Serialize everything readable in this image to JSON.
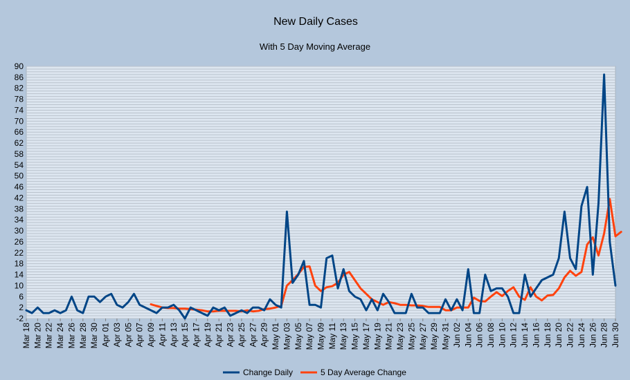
{
  "chart_data": {
    "type": "line",
    "title": "New Daily Cases",
    "subtitle": "With 5 Day Moving Average",
    "xlabel": "",
    "ylabel": "",
    "ylim": [
      -2,
      90
    ],
    "yticks": [
      -2,
      2,
      6,
      10,
      14,
      18,
      22,
      26,
      30,
      34,
      38,
      42,
      46,
      50,
      54,
      58,
      62,
      66,
      70,
      74,
      78,
      82,
      86,
      90
    ],
    "grid": true,
    "legend": "bottom",
    "colors": {
      "background": "#b4c7dc",
      "plot_area": "#dde6f0",
      "gridline": "#b9c2cc"
    },
    "x_labels": [
      "Mar 18",
      "Mar 20",
      "Mar 22",
      "Mar 24",
      "Mar 26",
      "Mar 28",
      "Mar 30",
      "Apr 01",
      "Apr 03",
      "Apr 05",
      "Apr 07",
      "Apr 09",
      "Apr 11",
      "Apr 13",
      "Apr 15",
      "Apr 17",
      "Apr 19",
      "Apr 21",
      "Apr 23",
      "Apr 25",
      "Apr 27",
      "Apr 29",
      "May 01",
      "May 03",
      "May 05",
      "May 07",
      "May 09",
      "May 11",
      "May 13",
      "May 15",
      "May 17",
      "May 19",
      "May 21",
      "May 23",
      "May 25",
      "May 27",
      "May 29",
      "May 31",
      "Jun 02",
      "Jun 04",
      "Jun 06",
      "Jun 08",
      "Jun 10",
      "Jun 12",
      "Jun 14",
      "Jun 16",
      "Jun 18",
      "Jun 20",
      "Jun 22",
      "Jun 24",
      "Jun 26",
      "Jun 28",
      "Jun 30"
    ],
    "series": [
      {
        "name": "Change Daily",
        "color": "#004586",
        "values": [
          1,
          0,
          2,
          0,
          0,
          1,
          0,
          1,
          6,
          1,
          0,
          6,
          6,
          4,
          6,
          7,
          3,
          2,
          4,
          7,
          3,
          2,
          1,
          0,
          2,
          2,
          3,
          1,
          -2,
          2,
          1,
          0,
          -1,
          2,
          1,
          2,
          -1,
          0,
          1,
          0,
          2,
          2,
          1,
          5,
          3,
          2,
          37,
          11,
          14,
          19,
          3,
          3,
          2,
          20,
          21,
          9,
          16,
          8,
          6,
          5,
          1,
          5,
          1,
          7,
          4,
          0,
          0,
          0,
          7,
          2,
          2,
          0,
          0,
          0,
          5,
          1,
          5,
          1,
          16,
          0,
          0,
          14,
          8,
          9,
          9,
          6,
          0,
          0,
          14,
          6,
          9,
          12,
          13,
          14,
          20,
          37,
          20,
          16,
          39,
          46,
          14,
          40,
          87,
          26,
          10
        ]
      },
      {
        "name": "5 Day Average Change",
        "color": "#ff420e",
        "values": [
          null,
          null,
          null,
          null,
          null,
          null,
          null,
          null,
          null,
          null,
          null,
          null,
          null,
          null,
          null,
          null,
          null,
          null,
          null,
          null,
          null,
          null,
          3.2,
          2.6,
          2,
          1.8,
          1.8,
          1.6,
          1.6,
          1.4,
          1.2,
          1,
          0.6,
          0.6,
          0.8,
          0.8,
          0.8,
          0.8,
          0.6,
          1,
          0.6,
          0.8,
          1.4,
          1.6,
          2,
          2.6,
          10,
          12,
          14.2,
          16.8,
          17,
          10,
          8,
          9.4,
          9.8,
          11,
          14,
          15,
          12,
          9,
          7,
          5,
          4,
          3,
          4,
          3.6,
          3,
          3,
          2.8,
          2.8,
          2.6,
          2.2,
          2.2,
          2.2,
          1,
          1,
          2,
          2,
          2,
          5.6,
          4.4,
          4.2,
          6,
          7.6,
          6.2,
          8,
          9.4,
          6,
          4.8,
          9.4,
          6,
          4.6,
          6.4,
          6.6,
          9,
          13,
          15.4,
          13.6,
          15,
          25,
          27.6,
          21,
          29,
          41.6,
          28,
          29.6
        ]
      }
    ]
  }
}
